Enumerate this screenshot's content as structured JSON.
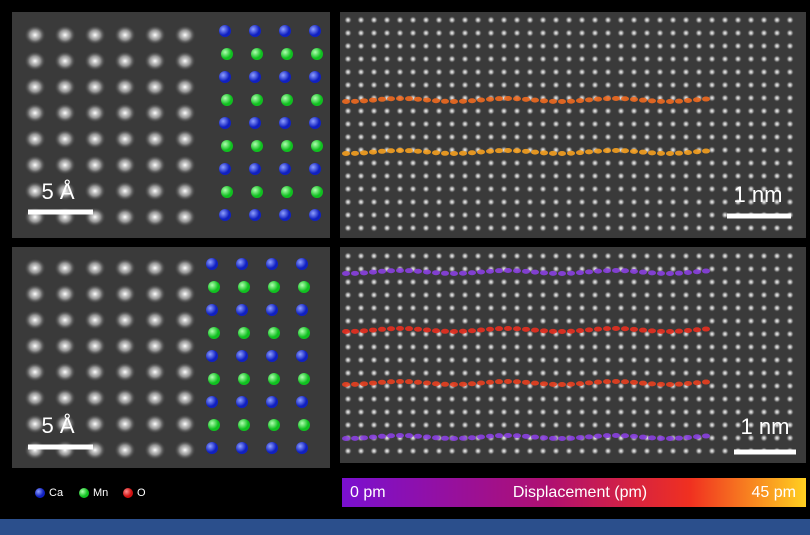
{
  "panels": [
    {
      "scale_label": "5 Å"
    },
    {
      "scale_label": "1 nm"
    },
    {
      "scale_label": "5 Å"
    },
    {
      "scale_label": "1 nm"
    }
  ],
  "legend": {
    "items": [
      "Ca",
      "Mn",
      "O"
    ]
  },
  "colorbar": {
    "min_label": "0 pm",
    "title": "Displacement (pm)",
    "max_label": "45 pm"
  }
}
